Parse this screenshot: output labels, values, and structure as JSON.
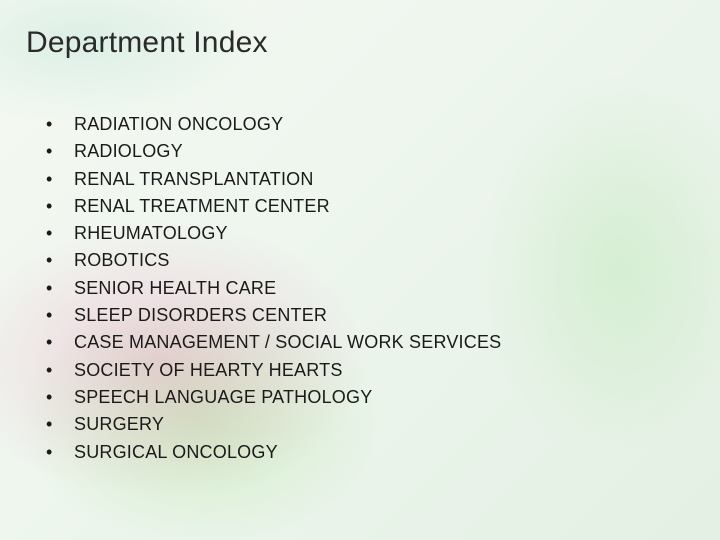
{
  "slide": {
    "title": "Department Index",
    "title_fontsize": 30,
    "title_color": "#2a2a2a",
    "list_fontsize": 18,
    "list_color": "#1a1a1a",
    "bullet_char": "•",
    "background": {
      "base_gradient": [
        "#f5f9f2",
        "#eef6ee",
        "#e4f0e4"
      ],
      "accent_pink": "rgba(230,100,160,0.25)",
      "accent_green": "rgba(180,230,160,0.5)"
    },
    "items": [
      "RADIATION ONCOLOGY",
      "RADIOLOGY",
      "RENAL TRANSPLANTATION",
      "RENAL TREATMENT CENTER",
      "RHEUMATOLOGY",
      "ROBOTICS",
      "SENIOR HEALTH CARE",
      "SLEEP DISORDERS CENTER",
      "CASE MANAGEMENT / SOCIAL WORK SERVICES",
      "SOCIETY OF HEARTY HEARTS",
      "SPEECH LANGUAGE PATHOLOGY",
      "SURGERY",
      "SURGICAL ONCOLOGY"
    ]
  }
}
